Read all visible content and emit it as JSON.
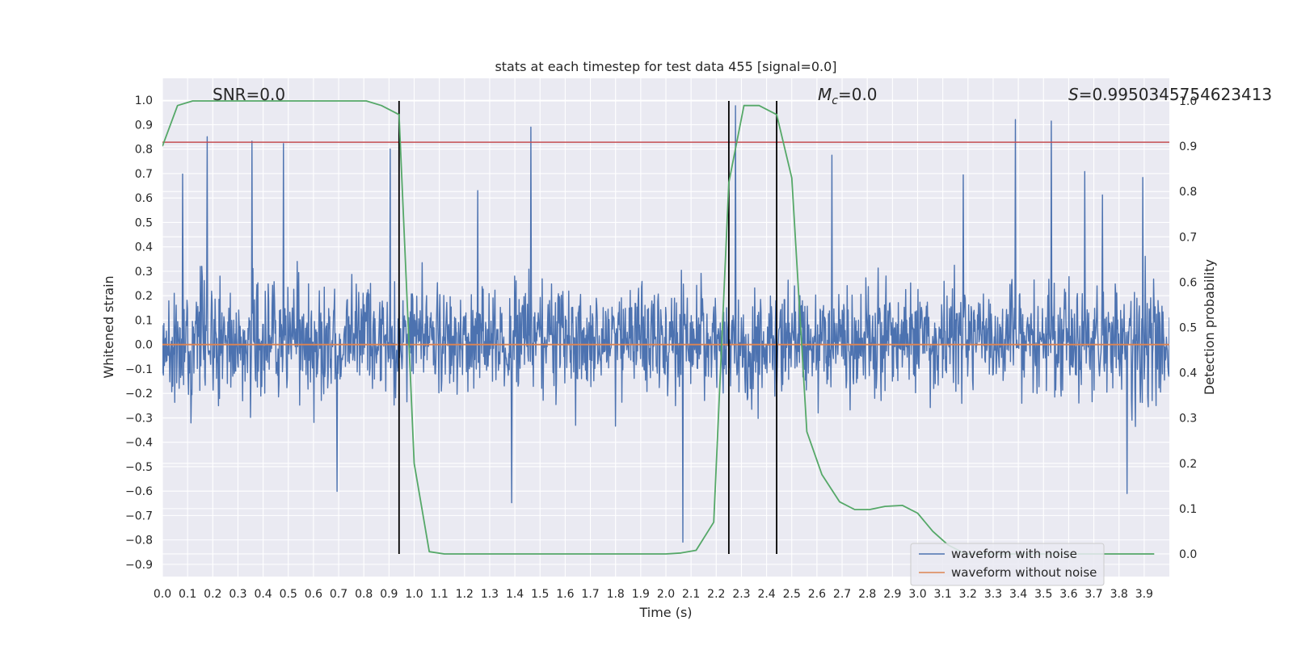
{
  "chart_data": {
    "type": "line",
    "title": "stats at each timestep for test data 455 [signal=0.0]",
    "xlabel": "Time (s)",
    "ylabel": "Whitened strain",
    "y2label": "Detection probability",
    "xlim": [
      0.0,
      4.0
    ],
    "ylim": [
      -0.95,
      1.09
    ],
    "y2lim": [
      -0.05,
      1.05
    ],
    "x_ticks": [
      "0.0",
      "0.1",
      "0.2",
      "0.3",
      "0.4",
      "0.5",
      "0.6",
      "0.7",
      "0.8",
      "0.9",
      "1.0",
      "1.1",
      "1.2",
      "1.3",
      "1.4",
      "1.5",
      "1.6",
      "1.7",
      "1.8",
      "1.9",
      "2.0",
      "2.1",
      "2.2",
      "2.3",
      "2.4",
      "2.5",
      "2.6",
      "2.7",
      "2.8",
      "2.9",
      "3.0",
      "3.1",
      "3.2",
      "3.3",
      "3.4",
      "3.5",
      "3.6",
      "3.7",
      "3.8",
      "3.9"
    ],
    "y_ticks": [
      "−0.9",
      "−0.8",
      "−0.7",
      "−0.6",
      "−0.5",
      "−0.4",
      "−0.3",
      "−0.2",
      "−0.1",
      "0.0",
      "0.1",
      "0.2",
      "0.3",
      "0.4",
      "0.5",
      "0.6",
      "0.7",
      "0.8",
      "0.9",
      "1.0"
    ],
    "y2_ticks": [
      "0.0",
      "0.1",
      "0.2",
      "0.3",
      "0.4",
      "0.5",
      "0.6",
      "0.7",
      "0.8",
      "0.9",
      "1.0"
    ],
    "annotations": {
      "snr": "SNR=0.0",
      "mc_symbol": "M",
      "mc_sub": "c",
      "mc_value": "=0.0",
      "s_symbol": "S",
      "s_value": "=0.9950345754623413"
    },
    "legend": {
      "position": "lower-right",
      "entries": [
        {
          "label": "waveform with noise",
          "color": "#4c72b0"
        },
        {
          "label": "waveform without noise",
          "color": "#dd8452"
        }
      ]
    },
    "series": [
      {
        "name": "waveform with noise",
        "axis": "left",
        "color": "#4c72b0",
        "style": "dense noise",
        "sample_count": 2048,
        "range": [
          -0.86,
          1.0
        ]
      },
      {
        "name": "waveform without noise",
        "axis": "left",
        "color": "#dd8452",
        "x": [
          0.0,
          4.0
        ],
        "values": [
          0.0,
          0.0
        ]
      },
      {
        "axis": "right",
        "color": "#55a868",
        "x": [
          0.0,
          0.06,
          0.12,
          0.19,
          0.25,
          0.31,
          0.37,
          0.44,
          0.5,
          0.56,
          0.62,
          0.69,
          0.75,
          0.81,
          0.87,
          0.94,
          1.0,
          1.06,
          1.12,
          1.19,
          1.25,
          1.31,
          1.37,
          1.44,
          1.5,
          1.56,
          1.62,
          1.69,
          1.75,
          1.81,
          1.87,
          1.94,
          2.0,
          2.06,
          2.12,
          2.19,
          2.25,
          2.31,
          2.37,
          2.44,
          2.5,
          2.56,
          2.62,
          2.69,
          2.75,
          2.81,
          2.87,
          2.94,
          3.0,
          3.06,
          3.12,
          3.19,
          3.25,
          3.31,
          3.37,
          3.44,
          3.5,
          3.56,
          3.62,
          3.69,
          3.75,
          3.81,
          3.87,
          3.94
        ],
        "values": [
          0.9,
          0.99,
          1.0,
          1.0,
          1.0,
          1.0,
          1.0,
          1.0,
          1.0,
          1.0,
          1.0,
          1.0,
          1.0,
          1.0,
          0.99,
          0.97,
          0.2,
          0.005,
          0.0,
          0.0,
          0.0,
          0.0,
          0.0,
          0.0,
          0.0,
          0.0,
          0.0,
          0.0,
          0.0,
          0.0,
          0.0,
          0.0,
          0.0,
          0.002,
          0.008,
          0.07,
          0.82,
          0.99,
          0.99,
          0.97,
          0.83,
          0.27,
          0.175,
          0.115,
          0.098,
          0.098,
          0.105,
          0.107,
          0.09,
          0.05,
          0.02,
          0.0,
          0.0,
          0.0,
          0.0,
          0.0,
          0.0,
          0.0,
          0.0,
          0.0,
          0.0,
          0.0,
          0.0,
          0.0
        ]
      }
    ],
    "threshold": {
      "axis": "right",
      "value": 0.909,
      "color": "#c44e52"
    },
    "vlines": {
      "x": [
        0.94,
        2.25,
        2.44
      ],
      "y_range": [
        0.0,
        1.0
      ],
      "axis": "right",
      "color": "#000000"
    },
    "grid": true
  }
}
